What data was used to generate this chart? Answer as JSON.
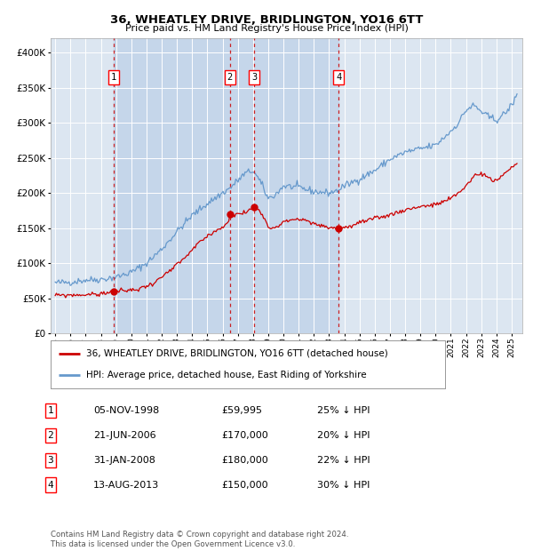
{
  "title": "36, WHEATLEY DRIVE, BRIDLINGTON, YO16 6TT",
  "subtitle": "Price paid vs. HM Land Registry's House Price Index (HPI)",
  "background_color": "#ffffff",
  "plot_bg_color": "#dce6f1",
  "grid_color": "#ffffff",
  "hpi_color": "#6699cc",
  "price_color": "#cc0000",
  "transactions": [
    {
      "num": 1,
      "date_x": 1998.84,
      "price": 59995,
      "label": "05-NOV-1998",
      "price_label": "£59,995",
      "hpi_pct": "25% ↓ HPI"
    },
    {
      "num": 2,
      "date_x": 2006.47,
      "price": 170000,
      "label": "21-JUN-2006",
      "price_label": "£170,000",
      "hpi_pct": "20% ↓ HPI"
    },
    {
      "num": 3,
      "date_x": 2008.08,
      "price": 180000,
      "label": "31-JAN-2008",
      "price_label": "£180,000",
      "hpi_pct": "22% ↓ HPI"
    },
    {
      "num": 4,
      "date_x": 2013.62,
      "price": 150000,
      "label": "13-AUG-2013",
      "price_label": "£150,000",
      "hpi_pct": "30% ↓ HPI"
    }
  ],
  "ylim": [
    0,
    420000
  ],
  "xlim_start": 1994.7,
  "xlim_end": 2025.7,
  "legend_label_price": "36, WHEATLEY DRIVE, BRIDLINGTON, YO16 6TT (detached house)",
  "legend_label_hpi": "HPI: Average price, detached house, East Riding of Yorkshire",
  "footer": "Contains HM Land Registry data © Crown copyright and database right 2024.\nThis data is licensed under the Open Government Licence v3.0.",
  "hpi_anchors": [
    [
      1995.0,
      72000
    ],
    [
      1996.0,
      73000
    ],
    [
      1997.0,
      76000
    ],
    [
      1998.0,
      77000
    ],
    [
      1999.0,
      80000
    ],
    [
      2000.0,
      87000
    ],
    [
      2001.0,
      100000
    ],
    [
      2002.0,
      120000
    ],
    [
      2003.0,
      145000
    ],
    [
      2004.0,
      168000
    ],
    [
      2005.0,
      185000
    ],
    [
      2006.0,
      200000
    ],
    [
      2006.5,
      207000
    ],
    [
      2007.0,
      218000
    ],
    [
      2007.5,
      228000
    ],
    [
      2008.0,
      232000
    ],
    [
      2008.5,
      215000
    ],
    [
      2009.0,
      192000
    ],
    [
      2009.5,
      198000
    ],
    [
      2010.0,
      210000
    ],
    [
      2011.0,
      208000
    ],
    [
      2012.0,
      202000
    ],
    [
      2013.0,
      200000
    ],
    [
      2013.5,
      203000
    ],
    [
      2014.0,
      210000
    ],
    [
      2015.0,
      220000
    ],
    [
      2016.0,
      232000
    ],
    [
      2017.0,
      248000
    ],
    [
      2018.0,
      258000
    ],
    [
      2019.0,
      263000
    ],
    [
      2020.0,
      268000
    ],
    [
      2021.0,
      288000
    ],
    [
      2021.5,
      300000
    ],
    [
      2022.0,
      318000
    ],
    [
      2022.5,
      325000
    ],
    [
      2023.0,
      316000
    ],
    [
      2023.5,
      308000
    ],
    [
      2024.0,
      304000
    ],
    [
      2024.5,
      312000
    ],
    [
      2025.0,
      325000
    ],
    [
      2025.3,
      338000
    ]
  ],
  "price_anchors": [
    [
      1995.0,
      54000
    ],
    [
      1996.0,
      54500
    ],
    [
      1997.0,
      55000
    ],
    [
      1998.0,
      56000
    ],
    [
      1998.84,
      59995
    ],
    [
      1999.5,
      60500
    ],
    [
      2000.5,
      63000
    ],
    [
      2001.5,
      72000
    ],
    [
      2002.5,
      88000
    ],
    [
      2003.5,
      107000
    ],
    [
      2004.5,
      130000
    ],
    [
      2005.5,
      146000
    ],
    [
      2006.3,
      155000
    ],
    [
      2006.47,
      170000
    ],
    [
      2006.7,
      168000
    ],
    [
      2007.0,
      170000
    ],
    [
      2007.5,
      172000
    ],
    [
      2008.08,
      180000
    ],
    [
      2008.4,
      176000
    ],
    [
      2008.7,
      168000
    ],
    [
      2009.0,
      150000
    ],
    [
      2009.5,
      152000
    ],
    [
      2010.0,
      158000
    ],
    [
      2010.5,
      162000
    ],
    [
      2011.0,
      163000
    ],
    [
      2011.5,
      160000
    ],
    [
      2012.0,
      156000
    ],
    [
      2012.5,
      153000
    ],
    [
      2013.0,
      151000
    ],
    [
      2013.62,
      150000
    ],
    [
      2014.0,
      151000
    ],
    [
      2014.5,
      153000
    ],
    [
      2015.0,
      158000
    ],
    [
      2016.0,
      163000
    ],
    [
      2017.0,
      169000
    ],
    [
      2018.0,
      176000
    ],
    [
      2019.0,
      181000
    ],
    [
      2020.0,
      183000
    ],
    [
      2021.0,
      192000
    ],
    [
      2021.5,
      200000
    ],
    [
      2022.0,
      210000
    ],
    [
      2022.5,
      224000
    ],
    [
      2023.0,
      228000
    ],
    [
      2023.3,
      225000
    ],
    [
      2023.7,
      218000
    ],
    [
      2024.0,
      216000
    ],
    [
      2024.5,
      228000
    ],
    [
      2025.0,
      235000
    ],
    [
      2025.3,
      242000
    ]
  ]
}
